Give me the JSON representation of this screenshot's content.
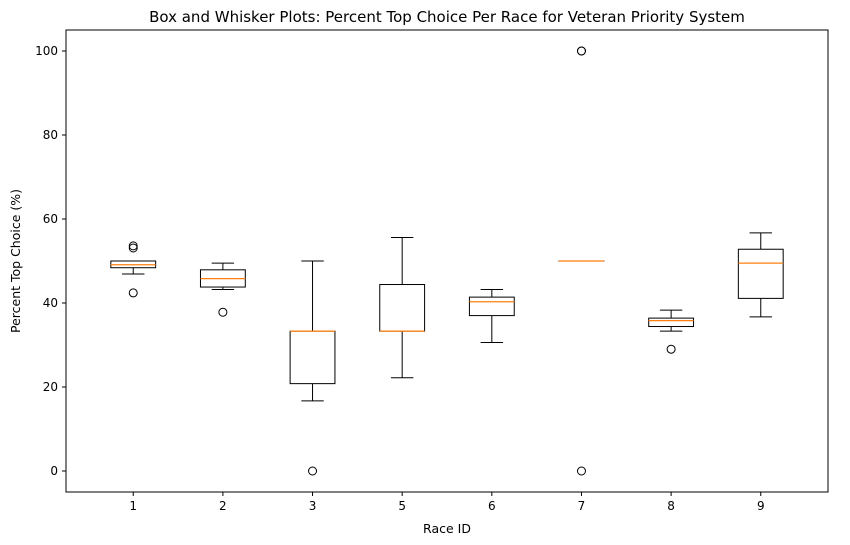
{
  "chart_data": {
    "type": "box",
    "title": "Box and Whisker Plots: Percent Top Choice Per Race for Veteran Priority System",
    "xlabel": "Race ID",
    "ylabel": "Percent Top Choice (%)",
    "ylim": [
      -5,
      105
    ],
    "yticks": [
      0,
      20,
      40,
      60,
      80,
      100
    ],
    "grid": false,
    "categories": [
      "1",
      "2",
      "3",
      "5",
      "6",
      "7",
      "8",
      "9"
    ],
    "boxes": [
      {
        "label": "1",
        "whisker_low": 46.9,
        "q1": 48.4,
        "median": 49.1,
        "q3": 50.0,
        "whisker_high": 50.0,
        "outliers": [
          42.4,
          53.1,
          53.6
        ]
      },
      {
        "label": "2",
        "whisker_low": 43.2,
        "q1": 43.8,
        "median": 45.8,
        "q3": 47.9,
        "whisker_high": 49.5,
        "outliers": [
          37.8
        ]
      },
      {
        "label": "3",
        "whisker_low": 16.7,
        "q1": 20.8,
        "median": 33.3,
        "q3": 33.3,
        "whisker_high": 50.0,
        "outliers": [
          0
        ]
      },
      {
        "label": "5",
        "whisker_low": 22.2,
        "q1": 33.3,
        "median": 33.3,
        "q3": 44.4,
        "whisker_high": 55.6,
        "outliers": []
      },
      {
        "label": "6",
        "whisker_low": 30.6,
        "q1": 37.0,
        "median": 40.3,
        "q3": 41.4,
        "whisker_high": 43.2,
        "outliers": []
      },
      {
        "label": "7",
        "whisker_low": 50.0,
        "q1": 50.0,
        "median": 50.0,
        "q3": 50.0,
        "whisker_high": 50.0,
        "outliers": [
          0,
          100,
          100
        ]
      },
      {
        "label": "8",
        "whisker_low": 33.3,
        "q1": 34.4,
        "median": 35.8,
        "q3": 36.4,
        "whisker_high": 38.3,
        "outliers": [
          29.0
        ]
      },
      {
        "label": "9",
        "whisker_low": 36.7,
        "q1": 41.1,
        "median": 49.5,
        "q3": 52.8,
        "whisker_high": 56.7,
        "outliers": []
      }
    ],
    "colors": {
      "box": "#000000",
      "median": "#ff7f0e",
      "axis": "#000000",
      "background": "#ffffff"
    }
  }
}
